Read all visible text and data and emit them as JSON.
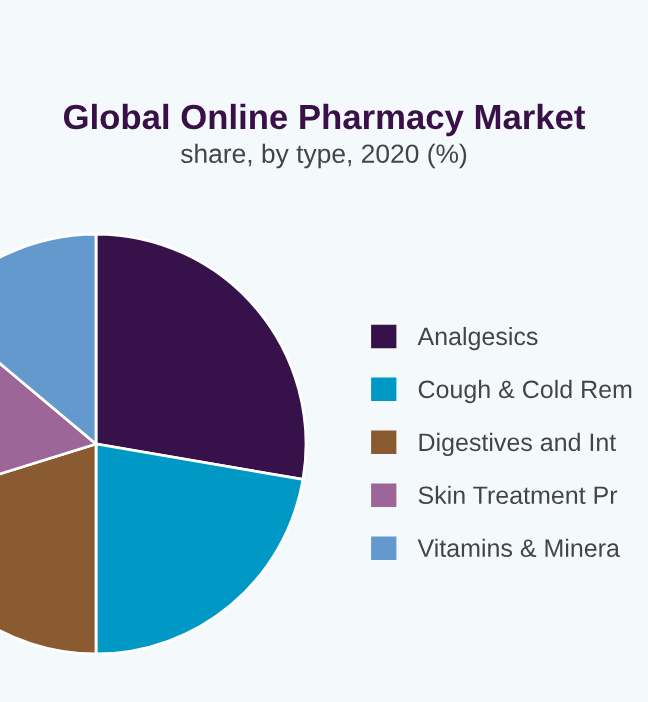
{
  "chart_data": {
    "type": "pie",
    "title": "Global Online Pharmacy Market",
    "subtitle": "share, by type, 2020 (%)",
    "categories": [
      "Analgesics",
      "Cough & Cold Rem",
      "Digestives and Int",
      "Skin Treatment Pr",
      "Vitamins & Minera"
    ],
    "values": [
      27.7,
      22.3,
      20.2,
      15.9,
      13.9
    ],
    "colors": [
      "#37114a",
      "#0099c6",
      "#8a5a30",
      "#9c6698",
      "#6399cc"
    ],
    "legend": "right"
  }
}
